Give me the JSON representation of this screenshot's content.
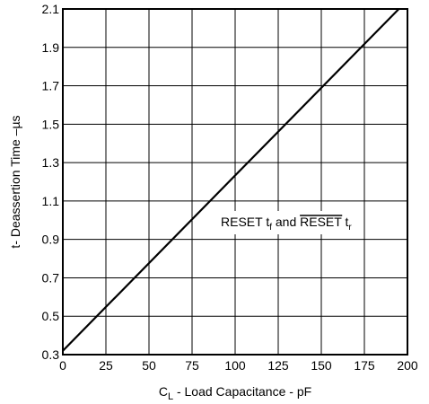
{
  "chart_data": {
    "type": "line",
    "xlabel": {
      "main": "C",
      "sub": "L",
      "rest": " - Load Capacitance - pF"
    },
    "ylabel": "t- Deassertion Time –µs",
    "xlim": [
      0,
      200
    ],
    "ylim": [
      0.3,
      2.1
    ],
    "xticks": [
      0,
      25,
      50,
      75,
      100,
      125,
      150,
      175,
      200
    ],
    "yticks": [
      0.3,
      0.5,
      0.7,
      0.9,
      1.1,
      1.3,
      1.5,
      1.7,
      1.9,
      2.1
    ],
    "xtick_labels": [
      "0",
      "25",
      "50",
      "75",
      "100",
      "125",
      "150",
      "175",
      "200"
    ],
    "ytick_labels": [
      "0.3",
      "0.5",
      "0.7",
      "0.9",
      "1.1",
      "1.3",
      "1.5",
      "1.7",
      "1.9",
      "2.1"
    ],
    "grid": true,
    "series": [
      {
        "x": [
          0,
          195
        ],
        "y": [
          0.32,
          2.1
        ]
      }
    ],
    "annotation": {
      "label1": "RESET t",
      "sub1": "f",
      "middle": " and ",
      "label2_overlined": "RESET",
      "label2_rest": " t",
      "sub2": "r"
    }
  }
}
